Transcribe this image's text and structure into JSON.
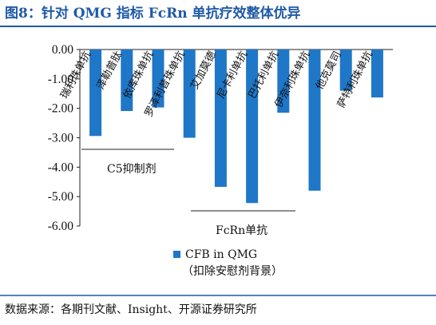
{
  "header": {
    "title": "图8：针对 QMG 指标 FcRn 单抗疗效整体优异"
  },
  "chart_data": {
    "type": "bar",
    "title": "",
    "xlabel": "",
    "ylabel": "",
    "ylim": [
      -6,
      0
    ],
    "yticks": [
      "0.00",
      "-1.00",
      "-2.00",
      "-3.00",
      "-4.00",
      "-5.00",
      "-6.00"
    ],
    "grid": false,
    "categories": [
      "瑞利珠单抗",
      "泽勒普肽",
      "依库珠单抗",
      "罗泽利昔珠单抗",
      "艾加莫德",
      "尼卡利单抗",
      "巴托利单抗",
      "伊奈利珠单抗",
      "他克莫司",
      "萨特利珠单抗"
    ],
    "series": [
      {
        "name": "CFB in QMG",
        "color": "#1f77c8",
        "values": [
          -2.94,
          -2.09,
          -1.97,
          -3.0,
          -4.67,
          -5.22,
          -2.15,
          -4.8,
          -1.4,
          -1.63
        ]
      }
    ],
    "groups": [
      {
        "label": "C5抑制剂"
      },
      {
        "label": "FcRn单抗"
      }
    ],
    "legend": {
      "label": "CFB in QMG",
      "sublabel": "（扣除安慰剂背景）",
      "position": "bottom"
    }
  },
  "footer": {
    "source": "数据来源：各期刊文献、Insight、开源证券研究所"
  }
}
